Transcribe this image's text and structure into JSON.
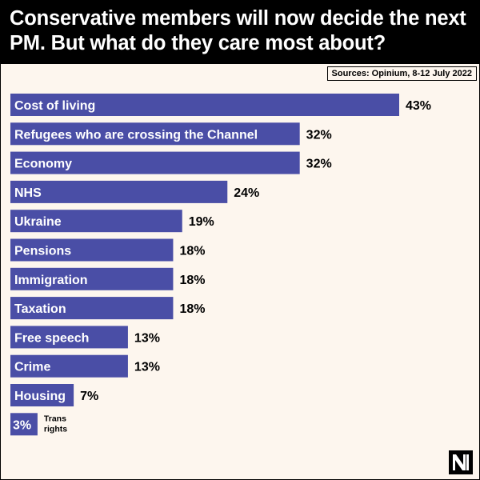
{
  "header": {
    "title": "Conservative members will now decide the next PM. But what do they care most about?"
  },
  "source": "Sources: Opinium, 8-12 July 2022",
  "colors": {
    "bar": "#4a4ea6",
    "header_bg": "#000000",
    "background": "#fdf6ee"
  },
  "chart_data": {
    "type": "bar",
    "orientation": "horizontal",
    "title": "Conservative members will now decide the next PM. But what do they care most about?",
    "categories": [
      "Cost of living",
      "Refugees who are crossing the Channel",
      "Economy",
      "NHS",
      "Ukraine",
      "Pensions",
      "Immigration",
      "Taxation",
      "Free speech",
      "Crime",
      "Housing",
      "Trans rights"
    ],
    "values": [
      43,
      32,
      32,
      24,
      19,
      18,
      18,
      18,
      13,
      13,
      7,
      3
    ],
    "value_labels": [
      "43%",
      "32%",
      "32%",
      "24%",
      "19%",
      "18%",
      "18%",
      "18%",
      "13%",
      "13%",
      "7%",
      "3%"
    ],
    "xlim": [
      0,
      43
    ],
    "grid": false,
    "legend": "none"
  }
}
